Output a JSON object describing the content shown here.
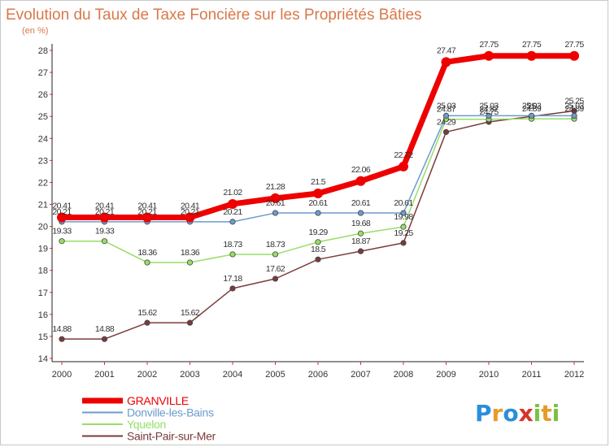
{
  "chart_data": {
    "type": "line",
    "title": "Evolution du Taux de Taxe Foncière sur les Propriétés Bâties",
    "subtitle": "(en %)",
    "x": [
      "2000",
      "2001",
      "2002",
      "2003",
      "2004",
      "2005",
      "2006",
      "2007",
      "2008",
      "2009",
      "2010",
      "2011",
      "2012"
    ],
    "ylim": [
      14,
      28
    ],
    "yticks": [
      14,
      15,
      16,
      17,
      18,
      19,
      20,
      21,
      22,
      23,
      24,
      25,
      26,
      27,
      28
    ],
    "grid": false,
    "legend_position": "bottom-left",
    "series": [
      {
        "name": "GRANVILLE",
        "color": "#ee0000",
        "values": [
          20.41,
          20.41,
          20.41,
          20.41,
          21.02,
          21.28,
          21.5,
          22.06,
          22.72,
          27.47,
          27.75,
          27.75,
          27.75
        ],
        "labels": [
          "20.41",
          "20.41",
          "20.41",
          "20.41",
          "21.02",
          "21.28",
          "21.5",
          "22.06",
          "22.72",
          "27.47",
          "27.75",
          "27.75",
          "27.75"
        ]
      },
      {
        "name": "Donville-les-Bains",
        "color": "#6b9ccd",
        "values": [
          20.21,
          20.21,
          20.21,
          20.21,
          20.21,
          20.61,
          20.61,
          20.61,
          20.61,
          25.03,
          25.03,
          25.03,
          25.03
        ],
        "labels": [
          "20.21",
          "20.21",
          "20.21",
          "20.21",
          "20.21",
          "20.61",
          "20.61",
          "20.61",
          "20.61",
          "25.03",
          "25.03",
          "25.03",
          "25.03"
        ]
      },
      {
        "name": "Yquelon",
        "color": "#99dd66",
        "values": [
          19.33,
          19.33,
          18.36,
          18.36,
          18.73,
          18.73,
          19.29,
          19.68,
          19.98,
          24.87,
          24.87,
          24.89,
          24.89
        ],
        "labels": [
          "19.33",
          "19.33",
          "18.36",
          "18.36",
          "18.73",
          "18.73",
          "19.29",
          "19.68",
          "19.98",
          "24.87",
          "24.87",
          "24.89",
          "24.89"
        ]
      },
      {
        "name": "Saint-Pair-sur-Mer",
        "color": "#7a3b3b",
        "values": [
          14.88,
          14.88,
          15.62,
          15.62,
          17.18,
          17.62,
          18.5,
          18.87,
          19.25,
          24.29,
          24.75,
          25.0,
          25.25
        ],
        "labels": [
          "14.88",
          "14.88",
          "15.62",
          "15.62",
          "17.18",
          "17.62",
          "18.5",
          "18.87",
          "19.25",
          "24.29",
          "24.75",
          "25",
          "25.25"
        ]
      }
    ]
  },
  "brand": {
    "letters": [
      "P",
      "r",
      "o",
      "x",
      "i",
      "t",
      "i"
    ],
    "colors": [
      "#2a8fd8",
      "#e89a2a",
      "#2a8fd8",
      "#d8342a",
      "#7ac142",
      "#e89a2a",
      "#7ac142"
    ]
  }
}
